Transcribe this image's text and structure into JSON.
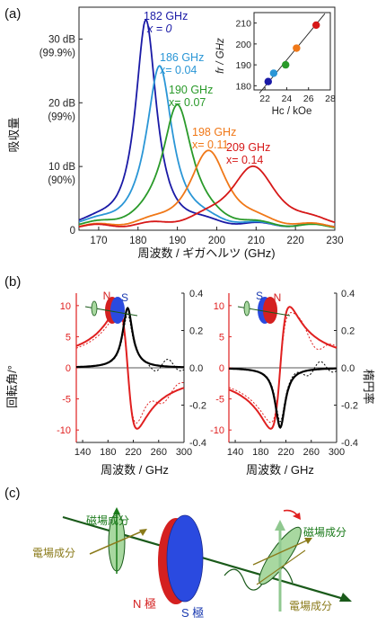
{
  "figure": {
    "panel_labels": [
      "(a)",
      "(b)",
      "(c)"
    ]
  },
  "chart_data": [
    {
      "type": "line",
      "panel": "(a)",
      "xlabel": "周波数 / ギガヘルツ (GHz)",
      "ylabel": "吸収量",
      "xlim": [
        165,
        230
      ],
      "xticks": [
        170,
        180,
        190,
        200,
        210,
        220,
        230
      ],
      "ylim": [
        0,
        35
      ],
      "ytick_labels": [
        {
          "value": 30,
          "text": "30 dB",
          "sub": "(99.9%)"
        },
        {
          "value": 20,
          "text": "20 dB",
          "sub": "(99%)"
        },
        {
          "value": 10,
          "text": "10 dB",
          "sub": "(90%)"
        },
        {
          "value": 0,
          "text": "0",
          "sub": ""
        }
      ],
      "series": [
        {
          "name": "182 GHz",
          "note": "x = 0",
          "color": "#1a1aa6",
          "peak_x": 182,
          "peak_y": 32.2,
          "width": 3.2,
          "base": 1.0
        },
        {
          "name": "186 GHz",
          "note": "x= 0.04",
          "color": "#2a96d6",
          "peak_x": 185.5,
          "peak_y": 25.2,
          "width": 4.0,
          "base": 0.8
        },
        {
          "name": "190 GHz",
          "note": "x= 0.07",
          "color": "#2a9a2a",
          "peak_x": 190,
          "peak_y": 19.6,
          "width": 4.6,
          "base": 0.6
        },
        {
          "name": "198 GHz",
          "note": "x= 0.11",
          "color": "#f07818",
          "peak_x": 198,
          "peak_y": 12.0,
          "width": 6.0,
          "base": 0.5
        },
        {
          "name": "209 GHz",
          "note": "x= 0.14",
          "color": "#d61818",
          "peak_x": 209,
          "peak_y": 9.5,
          "width": 7.5,
          "base": 0.6
        }
      ],
      "inset": {
        "type": "scatter",
        "xlabel": "Hc / kOe",
        "ylabel": "fr / GHz",
        "xlim": [
          21,
          28
        ],
        "xticks": [
          22,
          24,
          26,
          28
        ],
        "ylim": [
          178,
          215
        ],
        "yticks": [
          180,
          190,
          200,
          210
        ],
        "points": [
          {
            "x": 22.3,
            "y": 182,
            "color": "#1a1aa6"
          },
          {
            "x": 22.8,
            "y": 186,
            "color": "#2a96d6"
          },
          {
            "x": 23.9,
            "y": 190,
            "color": "#2a9a2a"
          },
          {
            "x": 24.9,
            "y": 198,
            "color": "#f07818"
          },
          {
            "x": 26.7,
            "y": 209,
            "color": "#d61818"
          }
        ],
        "fit_line": [
          [
            21.5,
            176.5
          ],
          [
            27.5,
            214.5
          ]
        ]
      }
    },
    {
      "type": "line",
      "panel": "(b)",
      "xlabel": "周波数 / GHz",
      "ylabel_left": "回転角/°",
      "ylabel_right": "楕円率",
      "xlim": [
        130,
        300
      ],
      "xticks": [
        140,
        180,
        220,
        260,
        300
      ],
      "ylim_left": [
        -12,
        12
      ],
      "yticks_left": [
        -10,
        -5,
        0,
        5,
        10
      ],
      "ylim_right": [
        -0.4,
        0.4
      ],
      "yticks_right": [
        -0.4,
        -0.2,
        0.0,
        0.2,
        0.4
      ],
      "subplots": [
        {
          "magnet_labels": [
            "N",
            "S"
          ],
          "rotation_sign": 1,
          "series": [
            {
              "name": "回転角",
              "color": "#e02020",
              "style": "solid",
              "f0": 211,
              "gamma": 15,
              "amp": 10
            },
            {
              "name": "楕円率",
              "color": "#000000",
              "style": "solid",
              "f0": 211,
              "gamma": 15,
              "amp": 0.32
            }
          ]
        },
        {
          "magnet_labels": [
            "S",
            "N"
          ],
          "rotation_sign": -1,
          "series": [
            {
              "name": "回転角",
              "color": "#e02020",
              "style": "solid",
              "f0": 211,
              "gamma": 15,
              "amp": 10
            },
            {
              "name": "楕円率",
              "color": "#000000",
              "style": "solid",
              "f0": 211,
              "gamma": 15,
              "amp": 0.32
            }
          ]
        }
      ]
    }
  ],
  "panel_c": {
    "labels": {
      "magnetic_left": "磁場成分",
      "electric_left": "電場成分",
      "magnetic_right": "磁場成分",
      "electric_right": "電場成分",
      "n_pole": "N 極",
      "s_pole": "S 極"
    },
    "colors": {
      "magnetic": "#1a7a1a",
      "electric": "#8a7a1a",
      "n_pole": "#d42020",
      "s_pole": "#2a4ae0",
      "wave": "#1a5a1a",
      "wave_fill": "#a8d8a0"
    }
  }
}
